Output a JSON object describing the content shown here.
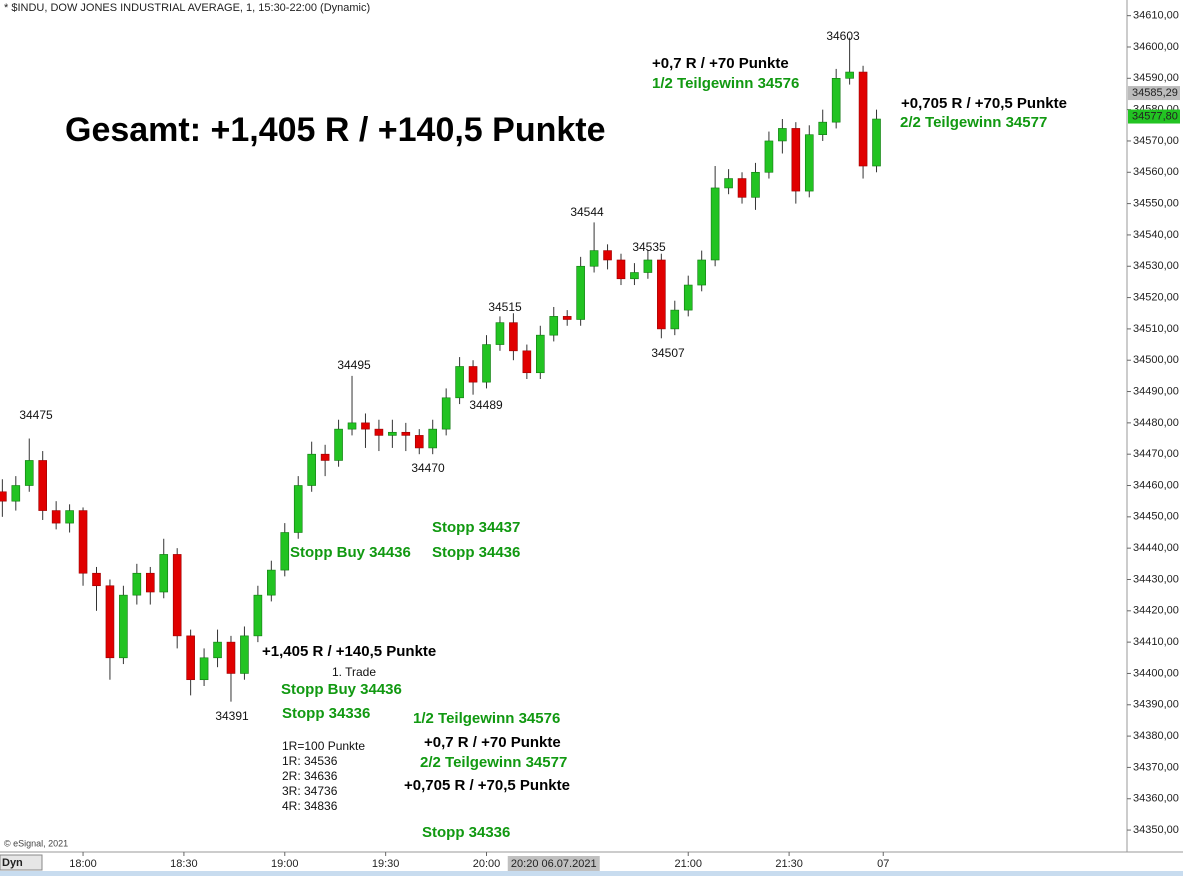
{
  "chart_data": {
    "type": "candlestick",
    "title": "* $INDU, DOW JONES INDUSTRIAL AVERAGE, 1, 15:30-22:00 (Dynamic)",
    "headline": "Gesamt: +1,405 R / +140,5 Punkte",
    "copyright": "© eSignal, 2021",
    "mode_label": "Dyn",
    "up_color": "#22c322",
    "down_color": "#e00000",
    "xlim": [
      1055.3,
      1390.5
    ],
    "ylim": [
      34343,
      34615
    ],
    "x": [
      1056,
      1060,
      1064,
      1068,
      1072,
      1076,
      1080,
      1084,
      1088,
      1092,
      1096,
      1100,
      1104,
      1108,
      1112,
      1116,
      1120,
      1124,
      1128,
      1132,
      1136,
      1140,
      1144,
      1148,
      1152,
      1156,
      1160,
      1164,
      1168,
      1172,
      1176,
      1180,
      1184,
      1188,
      1192,
      1196,
      1200,
      1204,
      1208,
      1212,
      1216,
      1220,
      1224,
      1228,
      1232,
      1236,
      1240,
      1244,
      1248,
      1252,
      1256,
      1260,
      1264,
      1268,
      1272,
      1276,
      1280,
      1284,
      1288,
      1292,
      1296,
      1300,
      1304,
      1308,
      1312,
      1316
    ],
    "open": [
      34458,
      34455,
      34460,
      34468,
      34452,
      34448,
      34452,
      34432,
      34428,
      34405,
      34425,
      34432,
      34426,
      34438,
      34412,
      34398,
      34405,
      34410,
      34400,
      34412,
      34425,
      34433,
      34445,
      34460,
      34470,
      34468,
      34478,
      34480,
      34478,
      34476,
      34477,
      34476,
      34472,
      34478,
      34488,
      34498,
      34493,
      34505,
      34512,
      34503,
      34496,
      34508,
      34514,
      34513,
      34530,
      34535,
      34532,
      34526,
      34528,
      34532,
      34510,
      34516,
      34524,
      34532,
      34555,
      34558,
      34552,
      34560,
      34570,
      34574,
      34554,
      34572,
      34576,
      34590,
      34592,
      34562
    ],
    "high": [
      34462,
      34463,
      34475,
      34471,
      34455,
      34454,
      34453,
      34434,
      34430,
      34428,
      34435,
      34434,
      34443,
      34440,
      34414,
      34408,
      34414,
      34412,
      34415,
      34428,
      34436,
      34448,
      34463,
      34474,
      34473,
      34481,
      34495,
      34483,
      34481,
      34481,
      34480,
      34478,
      34481,
      34491,
      34501,
      34500,
      34508,
      34514,
      34515,
      34505,
      34511,
      34517,
      34516,
      34533,
      34544,
      34537,
      34534,
      34531,
      34535,
      34534,
      34519,
      34527,
      34535,
      34562,
      34561,
      34560,
      34563,
      34573,
      34577,
      34576,
      34575,
      34580,
      34593,
      34603,
      34594,
      34580
    ],
    "low": [
      34450,
      34452,
      34458,
      34449,
      34446,
      34445,
      34428,
      34420,
      34398,
      34403,
      34422,
      34422,
      34424,
      34408,
      34393,
      34396,
      34402,
      34391,
      34398,
      34410,
      34423,
      34431,
      34443,
      34458,
      34463,
      34466,
      34476,
      34472,
      34471,
      34472,
      34471,
      34470,
      34470,
      34476,
      34486,
      34489,
      34491,
      34503,
      34500,
      34494,
      34494,
      34506,
      34511,
      34511,
      34528,
      34529,
      34524,
      34524,
      34526,
      34507,
      34508,
      34514,
      34522,
      34530,
      34553,
      34550,
      34548,
      34558,
      34566,
      34550,
      34552,
      34570,
      34574,
      34588,
      34558,
      34560
    ],
    "close": [
      34455,
      34460,
      34468,
      34452,
      34448,
      34452,
      34432,
      34428,
      34405,
      34425,
      34432,
      34426,
      34438,
      34412,
      34398,
      34405,
      34410,
      34400,
      34412,
      34425,
      34433,
      34445,
      34460,
      34470,
      34468,
      34478,
      34480,
      34478,
      34476,
      34477,
      34476,
      34472,
      34478,
      34488,
      34498,
      34493,
      34505,
      34512,
      34503,
      34496,
      34508,
      34514,
      34513,
      34530,
      34535,
      34532,
      34526,
      34528,
      34532,
      34510,
      34516,
      34524,
      34532,
      34555,
      34558,
      34552,
      34560,
      34570,
      34574,
      34554,
      34572,
      34576,
      34590,
      34592,
      34562,
      34577
    ],
    "xticks": [
      {
        "value": 1080,
        "label": "18:00"
      },
      {
        "value": 1110,
        "label": "18:30"
      },
      {
        "value": 1140,
        "label": "19:00"
      },
      {
        "value": 1170,
        "label": "19:30"
      },
      {
        "value": 1200,
        "label": "20:00"
      },
      {
        "value": 1260,
        "label": "21:00"
      },
      {
        "value": 1290,
        "label": "21:30"
      },
      {
        "value": 1318,
        "label": "07"
      }
    ],
    "cursor_label": {
      "value": 1220,
      "label": "20:20 06.07.2021"
    },
    "yticks": [
      {
        "value": 34350,
        "label": "34350,00"
      },
      {
        "value": 34360,
        "label": "34360,00"
      },
      {
        "value": 34370,
        "label": "34370,00"
      },
      {
        "value": 34380,
        "label": "34380,00"
      },
      {
        "value": 34390,
        "label": "34390,00"
      },
      {
        "value": 34400,
        "label": "34400,00"
      },
      {
        "value": 34410,
        "label": "34410,00"
      },
      {
        "value": 34420,
        "label": "34420,00"
      },
      {
        "value": 34430,
        "label": "34430,00"
      },
      {
        "value": 34440,
        "label": "34440,00"
      },
      {
        "value": 34450,
        "label": "34450,00"
      },
      {
        "value": 34460,
        "label": "34460,00"
      },
      {
        "value": 34470,
        "label": "34470,00"
      },
      {
        "value": 34480,
        "label": "34480,00"
      },
      {
        "value": 34490,
        "label": "34490,00"
      },
      {
        "value": 34500,
        "label": "34500,00"
      },
      {
        "value": 34510,
        "label": "34510,00"
      },
      {
        "value": 34520,
        "label": "34520,00"
      },
      {
        "value": 34530,
        "label": "34530,00"
      },
      {
        "value": 34540,
        "label": "34540,00"
      },
      {
        "value": 34550,
        "label": "34550,00"
      },
      {
        "value": 34560,
        "label": "34560,00"
      },
      {
        "value": 34570,
        "label": "34570,00"
      },
      {
        "value": 34580,
        "label": "34580,00"
      },
      {
        "value": 34590,
        "label": "34590,00"
      },
      {
        "value": 34600,
        "label": "34600,00"
      },
      {
        "value": 34610,
        "label": "34610,00"
      }
    ],
    "price_tags": [
      {
        "value": 34585.29,
        "label": "34585,29",
        "color": "#bbbbbb"
      },
      {
        "value": 34577.8,
        "label": "34577,80",
        "color": "#22c322"
      }
    ],
    "price_labels": [
      "34475",
      "34495",
      "34470",
      "34489",
      "34515",
      "34544",
      "34535",
      "34507",
      "34603",
      "34391"
    ],
    "notes": [
      {
        "text": "+0,7 R / +70 Punkte",
        "color": "#000000"
      },
      {
        "text": "1/2 Teilgewinn 34576",
        "color": "#119911"
      },
      {
        "text": "+0,705 R / +70,5 Punkte",
        "color": "#000000"
      },
      {
        "text": "2/2 Teilgewinn 34577",
        "color": "#119911"
      },
      {
        "text": "Stopp 34437",
        "color": "#119911"
      },
      {
        "text": "Stopp Buy 34436",
        "color": "#119911"
      },
      {
        "text": "Stopp 34436",
        "color": "#119911"
      },
      {
        "text": "+1,405 R / +140,5 Punkte",
        "color": "#000000"
      },
      {
        "text": "Stopp Buy 34436",
        "color": "#119911"
      },
      {
        "text": "Stopp 34336",
        "color": "#119911"
      },
      {
        "text": "1/2 Teilgewinn 34576",
        "color": "#119911"
      },
      {
        "text": "+0,7 R / +70 Punkte",
        "color": "#000000"
      },
      {
        "text": "2/2 Teilgewinn 34577",
        "color": "#119911"
      },
      {
        "text": "+0,705 R / +70,5 Punkte",
        "color": "#000000"
      },
      {
        "text": "Stopp 34336",
        "color": "#119911"
      }
    ],
    "small_notes": [
      "1. Trade",
      "1R=100 Punkte",
      "1R: 34536",
      "2R: 34636",
      "3R: 34736",
      "4R: 34836"
    ]
  }
}
